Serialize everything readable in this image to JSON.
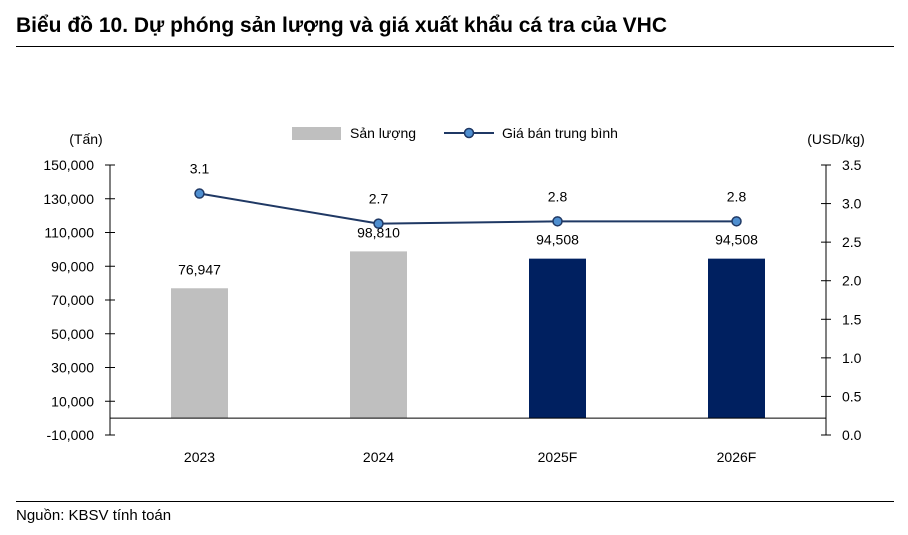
{
  "title": "Biểu đồ 10. Dự phóng sản lượng và giá xuất khẩu cá tra của VHC",
  "source": "Nguồn: KBSV tính toán",
  "chart_data": {
    "type": "bar",
    "categories": [
      "2023",
      "2024",
      "2025F",
      "2026F"
    ],
    "left_axis": {
      "unit_label": "(Tấn)",
      "range": [
        -10000,
        150000
      ],
      "ticks": [
        -10000,
        10000,
        30000,
        50000,
        70000,
        90000,
        110000,
        130000,
        150000
      ],
      "tick_labels": [
        "-10,000",
        "10,000",
        "30,000",
        "50,000",
        "70,000",
        "90,000",
        "110,000",
        "130,000",
        "150,000"
      ]
    },
    "right_axis": {
      "unit_label": "(USD/kg)",
      "range": [
        0,
        3.5
      ],
      "ticks": [
        0,
        0.5,
        1,
        1.5,
        2,
        2.5,
        3,
        3.5
      ],
      "tick_labels": [
        "0.0",
        "0.5",
        "1.0",
        "1.5",
        "2.0",
        "2.5",
        "3.0",
        "3.5"
      ]
    },
    "series": [
      {
        "name": "Sản lượng",
        "kind": "bar",
        "axis": "left",
        "values": [
          76947,
          98810,
          94508,
          94508
        ],
        "labels": [
          "76,947",
          "98,810",
          "94,508",
          "94,508"
        ],
        "colors": [
          "#bfbfbf",
          "#bfbfbf",
          "#002060",
          "#002060"
        ]
      },
      {
        "name": "Giá bán trung bình",
        "kind": "line",
        "axis": "right",
        "values": [
          3.13,
          2.74,
          2.77,
          2.77
        ],
        "labels": [
          "3.1",
          "2.7",
          "2.8",
          "2.8"
        ],
        "line_color": "#1f3864",
        "marker_color": "#4f8fd0"
      }
    ],
    "legend_position": "top-center",
    "legend_colors": {
      "bar": "#bfbfbf",
      "line": "#1f3864",
      "marker": "#4f8fd0"
    },
    "grid": false
  }
}
